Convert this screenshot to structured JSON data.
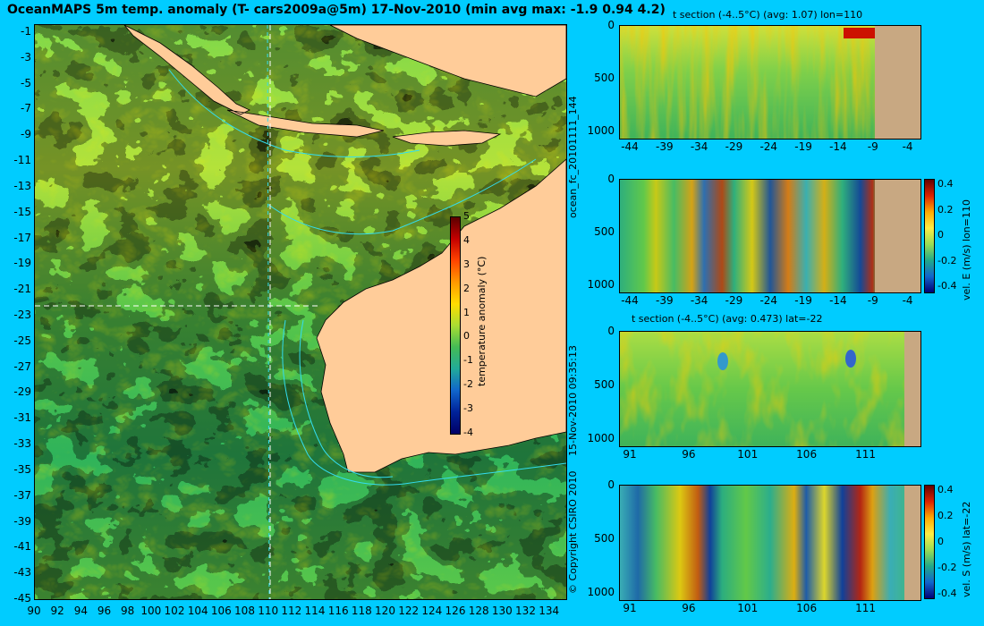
{
  "title": "OceanMAPS 5m temp. anomaly (T- cars2009a@5m) 17-Nov-2010 (min avg max: -1.9 0.94 4.2)",
  "side_labels": {
    "run": "ocean_fc_20101111_144",
    "timestamp": "15-Nov-2010 09:35:13",
    "copyright": "© Copyright CSIRO 2010"
  },
  "colors": {
    "background": "#00ccff",
    "land": "#ffcc99",
    "section_land": "#c8a882",
    "contour": "#33ddee",
    "section_line": "#ffffff"
  },
  "chart_data": [
    {
      "type": "heatmap",
      "name": "map",
      "title": "OceanMAPS 5m temp. anomaly (T- cars2009a@5m) 17-Nov-2010 (min avg max: -1.9 0.94 4.2)",
      "x_ticks": [
        "90",
        "92",
        "94",
        "96",
        "98",
        "100",
        "102",
        "104",
        "106",
        "108",
        "110",
        "112",
        "114",
        "116",
        "118",
        "120",
        "122",
        "124",
        "126",
        "128",
        "130",
        "132",
        "134"
      ],
      "y_ticks": [
        "-1",
        "-3",
        "-5",
        "-7",
        "-9",
        "-11",
        "-13",
        "-15",
        "-17",
        "-19",
        "-21",
        "-23",
        "-25",
        "-27",
        "-29",
        "-31",
        "-33",
        "-35",
        "-37",
        "-39",
        "-41",
        "-43",
        "-45"
      ],
      "xlim": [
        90,
        135
      ],
      "ylim": [
        -45,
        0
      ],
      "stats": {
        "min": -1.9,
        "avg": 0.94,
        "max": 4.2
      },
      "section_lines": {
        "lon": 110,
        "lat": -22
      },
      "colorbar": {
        "label": "temperature anomaly (°C)",
        "ticks": [
          "5",
          "4",
          "3",
          "2",
          "1",
          "0",
          "-1",
          "-2",
          "-3",
          "-4"
        ],
        "range": [
          -4,
          5
        ]
      }
    },
    {
      "type": "heatmap",
      "name": "t-section-lon",
      "title": "t section (-4..5°C) (avg: 1.07) lon=110",
      "x_ticks": [
        "-44",
        "-39",
        "-34",
        "-29",
        "-24",
        "-19",
        "-14",
        "-9",
        "-4"
      ],
      "y_ticks": [
        "0",
        "500",
        "1000"
      ]
    },
    {
      "type": "heatmap",
      "name": "u-section-lon",
      "title": "",
      "x_ticks": [
        "-44",
        "-39",
        "-34",
        "-29",
        "-24",
        "-19",
        "-14",
        "-9",
        "-4"
      ],
      "y_ticks": [
        "0",
        "500",
        "1000"
      ],
      "colorbar": {
        "label": "vel. E (m/s) lon=110",
        "ticks": [
          "0.4",
          "0.2",
          "0",
          "-0.2",
          "-0.4"
        ]
      }
    },
    {
      "type": "heatmap",
      "name": "t-section-lat",
      "title": "t section (-4..5°C) (avg: 0.473) lat=-22",
      "x_ticks": [
        "91",
        "96",
        "101",
        "106",
        "111"
      ],
      "y_ticks": [
        "0",
        "500",
        "1000"
      ]
    },
    {
      "type": "heatmap",
      "name": "v-section-lat",
      "title": "",
      "x_ticks": [
        "91",
        "96",
        "101",
        "106",
        "111"
      ],
      "y_ticks": [
        "0",
        "500",
        "1000"
      ],
      "colorbar": {
        "label": "vel. S (m/s) lat=-22",
        "ticks": [
          "0.4",
          "0.2",
          "0",
          "-0.2",
          "-0.4"
        ]
      }
    }
  ]
}
